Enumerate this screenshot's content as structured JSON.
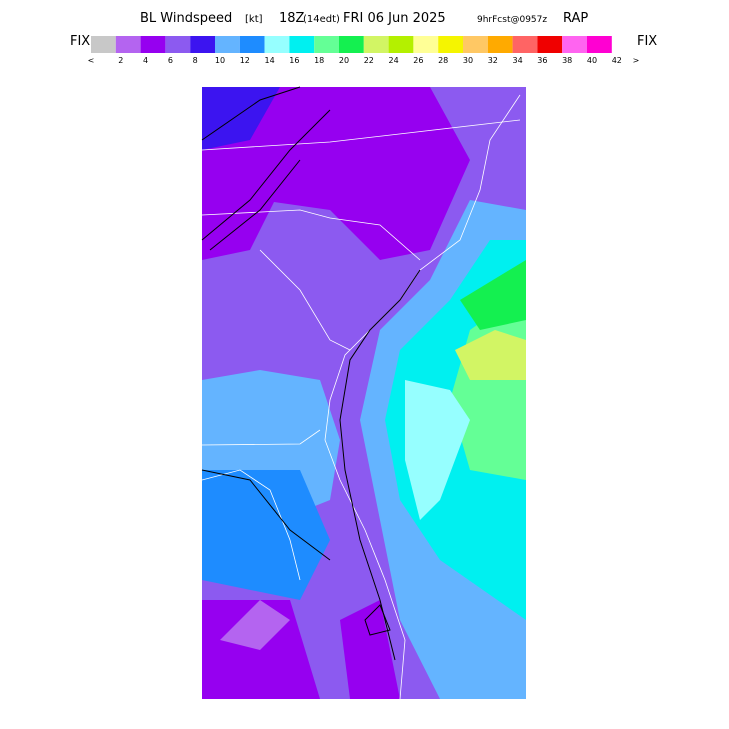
{
  "header": {
    "title_parts": [
      "BL Windspeed",
      "[kt]",
      "18Z",
      "(14edt)",
      "FRI 06 Jun 2025",
      "9hrFcst@0957z",
      "RAP"
    ]
  },
  "colorbar": {
    "left_label": "FIX",
    "right_label": "FIX",
    "colors": [
      "#c8c8c8",
      "#b464f0",
      "#9600f0",
      "#8c5af0",
      "#3c14f0",
      "#64b4ff",
      "#1e8cff",
      "#96ffff",
      "#00f0f0",
      "#64ff96",
      "#14f050",
      "#d2f564",
      "#b4f000",
      "#ffff96",
      "#f5f500",
      "#ffc864",
      "#ffaa00",
      "#ff6464",
      "#f00000",
      "#ff64f0",
      "#ff00d2"
    ],
    "labels": [
      "<",
      "2",
      "4",
      "6",
      "8",
      "10",
      "12",
      "14",
      "16",
      "18",
      "20",
      "22",
      "24",
      "26",
      "28",
      "30",
      "32",
      "34",
      "36",
      "38",
      "40",
      "42",
      ">"
    ]
  }
}
